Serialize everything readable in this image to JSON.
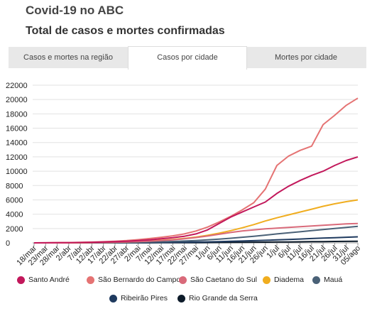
{
  "header": {
    "title": "Covid-19 no ABC",
    "subtitle": "Total de casos e mortes confirmadas"
  },
  "tabs": [
    {
      "label": "Casos e mortes na região",
      "active": false
    },
    {
      "label": "Casos por cidade",
      "active": true
    },
    {
      "label": "Mortes por cidade",
      "active": false
    }
  ],
  "chart_data": {
    "type": "line",
    "title": "",
    "xlabel": "",
    "ylabel": "",
    "ylim": [
      0,
      22000
    ],
    "yticks": [
      "0",
      "2000",
      "4000",
      "6000",
      "8000",
      "10000",
      "12000",
      "14000",
      "16000",
      "18000",
      "20000",
      "22000"
    ],
    "xticks": [
      "18/mar",
      "23/mar",
      "28/mar",
      "2/abr",
      "7/abr",
      "12/abr",
      "17/abr",
      "22/abr",
      "27/abr",
      "2/mai",
      "7/mai",
      "12/mai",
      "17/mai",
      "22/mai",
      "27/mai",
      "1/jun",
      "6/jun",
      "11/jun",
      "16/jun",
      "21/jun",
      "26/jun",
      "1/jul",
      "6/jul",
      "11/jul",
      "16/jul",
      "21/jul",
      "26/jul",
      "31/jul",
      "05/ago"
    ],
    "grid": true,
    "legend_position": "bottom",
    "series": [
      {
        "name": "Santo André",
        "color": "#c2185b",
        "values": [
          0,
          5,
          15,
          30,
          50,
          80,
          120,
          170,
          230,
          320,
          430,
          560,
          720,
          920,
          1250,
          1800,
          2700,
          3600,
          4300,
          5000,
          5700,
          6900,
          7900,
          8700,
          9400,
          10000,
          10800,
          11500,
          12000
        ]
      },
      {
        "name": "São Bernardo do Campo",
        "color": "#e57373",
        "values": [
          0,
          8,
          20,
          40,
          70,
          110,
          160,
          230,
          320,
          450,
          600,
          780,
          980,
          1250,
          1650,
          2200,
          2900,
          3700,
          4600,
          5600,
          7500,
          10800,
          12100,
          12900,
          13500,
          16500,
          17800,
          19200,
          20200
        ]
      },
      {
        "name": "São Caetano do Sul",
        "color": "#d96a7a",
        "values": [
          0,
          3,
          8,
          15,
          25,
          40,
          60,
          90,
          130,
          180,
          240,
          320,
          420,
          560,
          740,
          950,
          1200,
          1450,
          1650,
          1800,
          1950,
          2050,
          2150,
          2250,
          2350,
          2450,
          2550,
          2650,
          2700
        ]
      },
      {
        "name": "Diadema",
        "color": "#f0ad1f",
        "values": [
          0,
          2,
          5,
          10,
          20,
          35,
          55,
          85,
          130,
          190,
          270,
          360,
          470,
          620,
          800,
          1050,
          1350,
          1700,
          2100,
          2550,
          3050,
          3500,
          3900,
          4300,
          4700,
          5100,
          5450,
          5750,
          6000
        ]
      },
      {
        "name": "Mauá",
        "color": "#4a6177",
        "values": [
          0,
          1,
          3,
          6,
          10,
          16,
          25,
          38,
          55,
          80,
          110,
          150,
          200,
          260,
          330,
          420,
          520,
          640,
          780,
          920,
          1080,
          1250,
          1400,
          1550,
          1700,
          1850,
          2000,
          2150,
          2300
        ]
      },
      {
        "name": "Ribeirão Pires",
        "color": "#1f3a5f",
        "values": [
          0,
          0,
          1,
          2,
          3,
          5,
          8,
          12,
          18,
          25,
          35,
          48,
          65,
          85,
          110,
          140,
          175,
          215,
          260,
          310,
          360,
          420,
          480,
          540,
          600,
          660,
          720,
          780,
          840
        ]
      },
      {
        "name": "Rio Grande da Serra",
        "color": "#0d1b2a",
        "values": [
          0,
          0,
          0,
          1,
          1,
          2,
          3,
          4,
          6,
          8,
          11,
          15,
          20,
          26,
          33,
          42,
          52,
          63,
          75,
          88,
          102,
          117,
          132,
          148,
          164,
          180,
          196,
          212,
          228
        ]
      }
    ]
  }
}
